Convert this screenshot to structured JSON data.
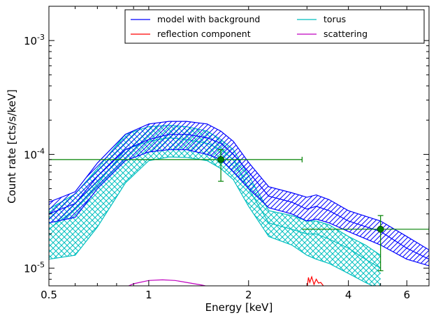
{
  "chart_data": {
    "type": "line",
    "xlabel": "Energy [keV]",
    "ylabel": "Count rate [cts/s/keV]",
    "xscale": "log",
    "yscale": "log",
    "xlim": [
      0.5,
      7.0
    ],
    "ylim": [
      7e-06,
      0.002
    ],
    "grid": false,
    "legend_placement": "top-right",
    "x_ticks": [
      {
        "value": 0.5,
        "label": "0.5"
      },
      {
        "value": 1,
        "label": "1"
      },
      {
        "value": 2,
        "label": "2"
      },
      {
        "value": 4,
        "label": "4"
      },
      {
        "value": 6,
        "label": "6"
      }
    ],
    "y_ticks": [
      {
        "value": 1e-05,
        "label": "10^-5",
        "base": "10",
        "exp": "-5"
      },
      {
        "value": 0.0001,
        "label": "10^-4",
        "base": "10",
        "exp": "-4"
      },
      {
        "value": 0.001,
        "label": "10^-3",
        "base": "10",
        "exp": "-3"
      }
    ],
    "legend": [
      {
        "name": "model with background",
        "color": "#0000ff"
      },
      {
        "name": "torus",
        "color": "#00bfbf"
      },
      {
        "name": "reflection component",
        "color": "#ff0000"
      },
      {
        "name": "scattering",
        "color": "#bf00bf"
      }
    ],
    "series": [
      {
        "name": "model with background",
        "color": "#0000ff",
        "hatch": "diagonal",
        "x": [
          0.5,
          0.6,
          0.7,
          0.85,
          1.0,
          1.15,
          1.3,
          1.5,
          1.65,
          1.8,
          2.0,
          2.3,
          2.7,
          3.0,
          3.2,
          3.5,
          4.0,
          5.0,
          6.0,
          7.0
        ],
        "y": [
          3e-05,
          3.7e-05,
          6.4e-05,
          0.00011,
          0.000135,
          0.00015,
          0.00015,
          0.00014,
          0.000125,
          0.0001,
          7e-05,
          4.3e-05,
          3.8e-05,
          3.3e-05,
          3.5e-05,
          3.2e-05,
          2.6e-05,
          2.1e-05,
          1.5e-05,
          1.2e-05
        ],
        "upper": [
          3.8e-05,
          4.7e-05,
          8.4e-05,
          0.00015,
          0.000185,
          0.000195,
          0.000195,
          0.000185,
          0.00016,
          0.00013,
          8.5e-05,
          5.2e-05,
          4.6e-05,
          4.2e-05,
          4.4e-05,
          4e-05,
          3.2e-05,
          2.6e-05,
          1.9e-05,
          1.45e-05
        ],
        "lower": [
          2.5e-05,
          2.8e-05,
          5e-05,
          8.8e-05,
          0.000105,
          0.00011,
          0.00011,
          0.0001,
          9e-05,
          7e-05,
          5e-05,
          3.4e-05,
          3e-05,
          2.6e-05,
          2.7e-05,
          2.5e-05,
          2.1e-05,
          1.6e-05,
          1.2e-05,
          1.05e-05
        ]
      },
      {
        "name": "torus",
        "color": "#00bfbf",
        "hatch": "cross",
        "x": [
          0.5,
          0.6,
          0.7,
          0.85,
          1.0,
          1.15,
          1.3,
          1.5,
          1.65,
          1.8,
          2.0,
          2.3,
          2.7,
          3.0,
          3.2,
          3.5,
          4.0,
          4.5,
          5.0
        ],
        "y": [
          2.2e-05,
          3.3e-05,
          5.5e-05,
          0.00011,
          0.00013,
          0.00014,
          0.000135,
          0.000125,
          0.00011,
          9e-05,
          5e-05,
          2.5e-05,
          2.2e-05,
          2e-05,
          2e-05,
          1.8e-05,
          1.5e-05,
          1.2e-05,
          1e-05
        ],
        "upper": [
          3.3e-05,
          4.5e-05,
          7.5e-05,
          0.00015,
          0.000175,
          0.00018,
          0.000175,
          0.00016,
          0.000135,
          0.00011,
          6.5e-05,
          3.2e-05,
          2.9e-05,
          2.6e-05,
          2.6e-05,
          2.4e-05,
          1.9e-05,
          1.6e-05,
          1.3e-05
        ],
        "lower": [
          1.2e-05,
          1.3e-05,
          2.3e-05,
          5.6e-05,
          8.8e-05,
          9.5e-05,
          9.4e-05,
          8.8e-05,
          7.5e-05,
          6e-05,
          3.5e-05,
          1.9e-05,
          1.6e-05,
          1.3e-05,
          1.2e-05,
          1.1e-05,
          9e-06,
          7.5e-06,
          6.5e-06
        ]
      },
      {
        "name": "reflection component",
        "color": "#ff0000",
        "x": [
          3.0,
          3.03,
          3.06,
          3.1,
          3.15,
          3.2,
          3.25,
          3.3,
          3.35,
          3.4
        ],
        "y": [
          6.5e-06,
          8.3e-06,
          7.5e-06,
          8.4e-06,
          7.2e-06,
          8e-06,
          7.4e-06,
          7.5e-06,
          7.1e-06,
          6.6e-06
        ]
      },
      {
        "name": "scattering",
        "color": "#bf00bf",
        "x": [
          0.85,
          0.9,
          1.0,
          1.1,
          1.2,
          1.3,
          1.45,
          1.55
        ],
        "y": [
          6.8e-06,
          7.3e-06,
          7.8e-06,
          7.9e-06,
          7.8e-06,
          7.5e-06,
          7.1e-06,
          6.8e-06
        ]
      },
      {
        "name": "data",
        "color": "#008000",
        "type": "errorbar",
        "points": [
          {
            "x": 1.65,
            "y": 9e-05,
            "xlo": 0.5,
            "xhi": 2.9,
            "ylo": 5.8e-05,
            "yhi": 0.00011
          },
          {
            "x": 5.0,
            "y": 2.2e-05,
            "xlo": 2.9,
            "xhi": 7.0,
            "ylo": 9.5e-06,
            "yhi": 2.9e-05
          }
        ]
      }
    ]
  }
}
